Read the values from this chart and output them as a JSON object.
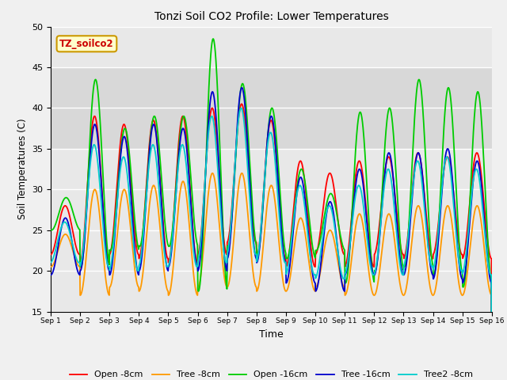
{
  "title": "Tonzi Soil CO2 Profile: Lower Temperatures",
  "xlabel": "Time",
  "ylabel": "Soil Temperatures (C)",
  "ylim": [
    15,
    50
  ],
  "xlim": [
    0,
    15
  ],
  "fig_bg_color": "#f0f0f0",
  "plot_bg_color": "#e8e8e8",
  "series_colors": {
    "Open -8cm": "#ff0000",
    "Tree -8cm": "#ff9900",
    "Open -16cm": "#00cc00",
    "Tree -16cm": "#0000cc",
    "Tree2 -8cm": "#00cccc"
  },
  "annotation_text": "TZ_soilco2",
  "annotation_bg": "#ffffcc",
  "annotation_border": "#cc9900",
  "yticks": [
    15,
    20,
    25,
    30,
    35,
    40,
    45,
    50
  ],
  "xtick_labels": [
    "Sep 1",
    "Sep 2",
    "Sep 3",
    "Sep 4",
    "Sep 5",
    "Sep 6",
    "Sep 7",
    "Sep 8",
    "Sep 9",
    "Sep 10",
    "Sep 11",
    "Sep 12",
    "Sep 13",
    "Sep 14",
    "Sep 15",
    "Sep 16"
  ],
  "grid_color": "#ffffff",
  "shaded_ymin": 35,
  "shaded_ymax": 45,
  "shaded_color": "#d8d8d8",
  "open8_means": [
    25,
    30,
    30,
    30,
    30,
    31,
    32,
    30,
    27,
    27,
    27,
    28,
    28,
    28,
    28
  ],
  "open8_amps": [
    3.0,
    9.0,
    8.0,
    8.5,
    9.0,
    9.0,
    8.5,
    8.5,
    6.5,
    5.0,
    6.5,
    6.0,
    6.5,
    6.0,
    6.5
  ],
  "tree8_means": [
    22.5,
    23.5,
    24,
    24,
    24,
    25,
    25,
    24,
    22,
    21.5,
    22,
    22,
    22.5,
    22.5,
    22.5
  ],
  "tree8_amps": [
    2.0,
    6.5,
    6.0,
    6.5,
    7.0,
    7.0,
    7.0,
    6.5,
    4.5,
    3.5,
    5.0,
    5.0,
    5.5,
    5.5,
    5.5
  ],
  "open16_means": [
    27,
    32,
    30,
    31,
    31,
    33,
    33,
    31,
    27,
    26,
    29,
    30,
    32,
    31,
    30
  ],
  "open16_amps": [
    2.0,
    11.5,
    7.5,
    8.0,
    8.0,
    15.5,
    10.0,
    9.0,
    5.5,
    3.5,
    10.5,
    10.0,
    11.5,
    11.5,
    12.0
  ],
  "tree16_means": [
    23,
    29,
    28,
    29,
    29,
    31,
    32,
    30,
    25,
    23,
    26,
    27,
    27,
    27,
    26
  ],
  "tree16_amps": [
    3.5,
    9.0,
    8.5,
    9.0,
    8.5,
    11.0,
    10.5,
    9.0,
    6.5,
    5.5,
    6.5,
    7.5,
    7.5,
    8.0,
    7.5
  ],
  "tree28_means": [
    23.5,
    28,
    27,
    28,
    28,
    30,
    31,
    29,
    25,
    23.5,
    25,
    26,
    27,
    27,
    26
  ],
  "tree28_amps": [
    2.5,
    7.5,
    7.0,
    7.5,
    7.5,
    9.0,
    9.0,
    8.0,
    5.5,
    4.5,
    5.5,
    6.5,
    6.5,
    7.0,
    6.5
  ],
  "open8_phase": 0.05,
  "tree8_phase": 0.0,
  "open16_phase": -0.15,
  "tree16_phase": 0.0,
  "tree28_phase": 0.15
}
